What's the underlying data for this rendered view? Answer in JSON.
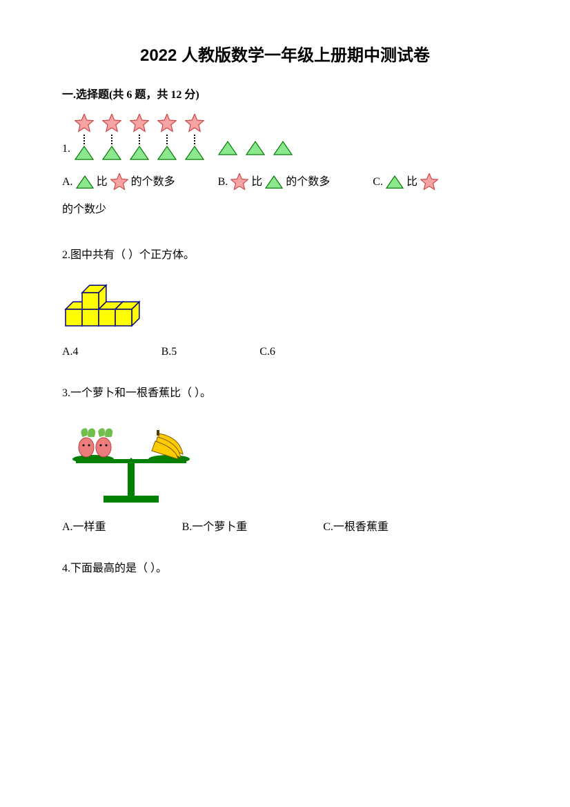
{
  "title": "2022 人教版数学一年级上册期中测试卷",
  "section1": {
    "header": "一.选择题(共 6 题，共 12 分)",
    "q1": {
      "number": "1.",
      "stars_count": 5,
      "triangles_paired": 5,
      "triangles_extra": 3,
      "optA_prefix": "A.",
      "optA_mid": "比",
      "optA_suffix": "的个数多",
      "optB_prefix": "B.",
      "optB_mid": "比",
      "optB_suffix": "的个数多",
      "optC_prefix": "C.",
      "optC_mid": "比",
      "line2_suffix": "的个数少"
    },
    "q2": {
      "text": "2.图中共有（     ）个正方体。",
      "optA": "A.4",
      "optB": "B.5",
      "optC": "C.6",
      "cube_fill": "#ffff00",
      "cube_stroke": "#000080"
    },
    "q3": {
      "text": "3.一个萝卜和一根香蕉比（     ）。",
      "optA": "A.一样重",
      "optB": "B.一个萝卜重",
      "optC": "C.一根香蕉重",
      "scale_green": "#008000",
      "radish_red": "#ed7d7d",
      "radish_leaf": "#6fbf4b",
      "banana_yellow": "#ffcc00",
      "banana_stroke": "#7a5c00"
    },
    "q4": {
      "text": "4.下面最高的是（     ）。"
    }
  },
  "shapes": {
    "star_fill": "#f5a3a3",
    "star_stroke": "#d04848",
    "star_size": 28,
    "triangle_fill": "#8ce88c",
    "triangle_stroke": "#0a7a0a",
    "triangle_size": 28
  }
}
